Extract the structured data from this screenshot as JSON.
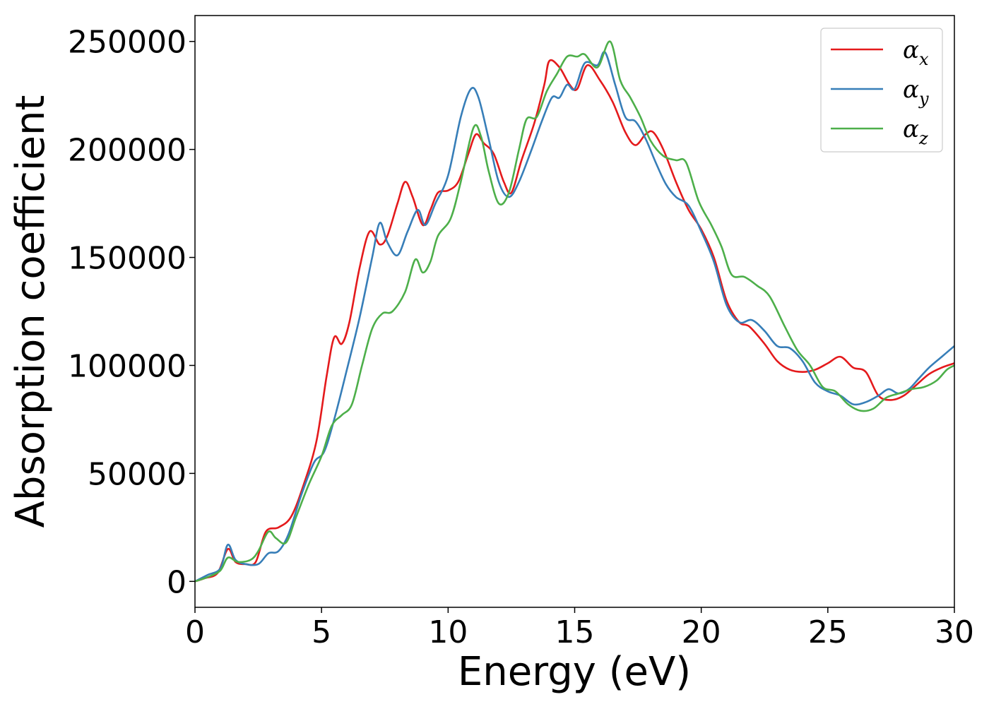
{
  "chart_data": {
    "type": "line",
    "title": "",
    "xlabel": "Energy (eV)",
    "ylabel": "Absorption coefficient",
    "xlim": [
      0,
      30
    ],
    "ylim": [
      -12000,
      262000
    ],
    "xticks": [
      0,
      5,
      10,
      15,
      20,
      25,
      30
    ],
    "yticks": [
      0,
      50000,
      100000,
      150000,
      200000,
      250000
    ],
    "grid": false,
    "legend_position": "top-right",
    "series": [
      {
        "name": "α_x",
        "label_base": "α",
        "label_sub": "x",
        "color": "#e41a1c",
        "points": [
          [
            0,
            0
          ],
          [
            0.4,
            1500
          ],
          [
            0.9,
            4000
          ],
          [
            1.3,
            15000
          ],
          [
            1.6,
            9000
          ],
          [
            2.0,
            8000
          ],
          [
            2.4,
            9000
          ],
          [
            2.8,
            23000
          ],
          [
            3.3,
            25000
          ],
          [
            3.8,
            30000
          ],
          [
            4.3,
            45000
          ],
          [
            4.8,
            65000
          ],
          [
            5.2,
            95000
          ],
          [
            5.5,
            113000
          ],
          [
            5.8,
            110000
          ],
          [
            6.1,
            120000
          ],
          [
            6.5,
            145000
          ],
          [
            6.9,
            162000
          ],
          [
            7.3,
            156000
          ],
          [
            7.6,
            160000
          ],
          [
            8.0,
            175000
          ],
          [
            8.3,
            185000
          ],
          [
            8.6,
            178000
          ],
          [
            9.0,
            165000
          ],
          [
            9.3,
            172000
          ],
          [
            9.6,
            180000
          ],
          [
            10.0,
            181000
          ],
          [
            10.4,
            185000
          ],
          [
            10.8,
            198000
          ],
          [
            11.1,
            207000
          ],
          [
            11.4,
            203000
          ],
          [
            11.8,
            198000
          ],
          [
            12.2,
            185000
          ],
          [
            12.5,
            180000
          ],
          [
            12.9,
            195000
          ],
          [
            13.4,
            212000
          ],
          [
            13.8,
            230000
          ],
          [
            14.0,
            241000
          ],
          [
            14.4,
            238000
          ],
          [
            14.8,
            230000
          ],
          [
            15.1,
            228000
          ],
          [
            15.5,
            239000
          ],
          [
            16.0,
            232000
          ],
          [
            16.5,
            222000
          ],
          [
            17.0,
            208000
          ],
          [
            17.4,
            202000
          ],
          [
            17.8,
            207000
          ],
          [
            18.1,
            208000
          ],
          [
            18.5,
            200000
          ],
          [
            19.0,
            185000
          ],
          [
            19.5,
            172000
          ],
          [
            20.0,
            163000
          ],
          [
            20.5,
            150000
          ],
          [
            21.0,
            130000
          ],
          [
            21.5,
            120000
          ],
          [
            21.9,
            118000
          ],
          [
            22.5,
            110000
          ],
          [
            23.0,
            102000
          ],
          [
            23.5,
            98000
          ],
          [
            24.0,
            97000
          ],
          [
            24.5,
            98000
          ],
          [
            25.0,
            101000
          ],
          [
            25.5,
            104000
          ],
          [
            26.0,
            99000
          ],
          [
            26.5,
            97000
          ],
          [
            27.0,
            86000
          ],
          [
            27.5,
            84000
          ],
          [
            28.0,
            86000
          ],
          [
            28.5,
            91000
          ],
          [
            29.0,
            96000
          ],
          [
            29.5,
            99000
          ],
          [
            30.0,
            101000
          ]
        ]
      },
      {
        "name": "α_y",
        "label_base": "α",
        "label_sub": "y",
        "color": "#377eb8",
        "points": [
          [
            0,
            0
          ],
          [
            0.5,
            3000
          ],
          [
            1.0,
            6000
          ],
          [
            1.3,
            17000
          ],
          [
            1.6,
            10000
          ],
          [
            2.0,
            8000
          ],
          [
            2.5,
            8000
          ],
          [
            2.9,
            13000
          ],
          [
            3.3,
            14000
          ],
          [
            3.7,
            22000
          ],
          [
            4.2,
            40000
          ],
          [
            4.7,
            55000
          ],
          [
            5.1,
            60000
          ],
          [
            5.5,
            75000
          ],
          [
            6.0,
            98000
          ],
          [
            6.5,
            122000
          ],
          [
            7.0,
            150000
          ],
          [
            7.3,
            166000
          ],
          [
            7.6,
            157000
          ],
          [
            8.0,
            151000
          ],
          [
            8.4,
            162000
          ],
          [
            8.8,
            172000
          ],
          [
            9.1,
            165000
          ],
          [
            9.5,
            175000
          ],
          [
            10.0,
            188000
          ],
          [
            10.5,
            215000
          ],
          [
            10.9,
            228000
          ],
          [
            11.2,
            224000
          ],
          [
            11.6,
            205000
          ],
          [
            12.0,
            185000
          ],
          [
            12.4,
            178000
          ],
          [
            12.8,
            185000
          ],
          [
            13.3,
            200000
          ],
          [
            13.7,
            213000
          ],
          [
            14.1,
            224000
          ],
          [
            14.4,
            224000
          ],
          [
            14.7,
            230000
          ],
          [
            15.0,
            228000
          ],
          [
            15.4,
            240000
          ],
          [
            15.9,
            239000
          ],
          [
            16.2,
            245000
          ],
          [
            16.6,
            230000
          ],
          [
            17.0,
            215000
          ],
          [
            17.4,
            213000
          ],
          [
            17.8,
            205000
          ],
          [
            18.2,
            194000
          ],
          [
            18.6,
            184000
          ],
          [
            19.0,
            178000
          ],
          [
            19.5,
            174000
          ],
          [
            20.0,
            162000
          ],
          [
            20.5,
            148000
          ],
          [
            21.0,
            128000
          ],
          [
            21.5,
            120000
          ],
          [
            22.0,
            121000
          ],
          [
            22.5,
            116000
          ],
          [
            23.0,
            109000
          ],
          [
            23.5,
            108000
          ],
          [
            24.0,
            102000
          ],
          [
            24.5,
            92000
          ],
          [
            25.0,
            88000
          ],
          [
            25.5,
            86000
          ],
          [
            26.0,
            82000
          ],
          [
            26.5,
            83000
          ],
          [
            27.0,
            86000
          ],
          [
            27.4,
            89000
          ],
          [
            27.8,
            87000
          ],
          [
            28.2,
            89000
          ],
          [
            28.6,
            94000
          ],
          [
            29.0,
            99000
          ],
          [
            29.5,
            104000
          ],
          [
            30.0,
            109000
          ]
        ]
      },
      {
        "name": "α_z",
        "label_base": "α",
        "label_sub": "z",
        "color": "#4daf4a",
        "points": [
          [
            0,
            0
          ],
          [
            0.5,
            2000
          ],
          [
            1.0,
            5000
          ],
          [
            1.3,
            11000
          ],
          [
            1.7,
            9000
          ],
          [
            2.2,
            10000
          ],
          [
            2.5,
            14000
          ],
          [
            2.9,
            23000
          ],
          [
            3.2,
            20000
          ],
          [
            3.6,
            18000
          ],
          [
            4.0,
            30000
          ],
          [
            4.5,
            45000
          ],
          [
            5.0,
            58000
          ],
          [
            5.4,
            72000
          ],
          [
            5.8,
            77000
          ],
          [
            6.2,
            82000
          ],
          [
            6.6,
            100000
          ],
          [
            7.0,
            117000
          ],
          [
            7.4,
            124000
          ],
          [
            7.8,
            125000
          ],
          [
            8.3,
            134000
          ],
          [
            8.7,
            149000
          ],
          [
            9.0,
            143000
          ],
          [
            9.3,
            148000
          ],
          [
            9.6,
            160000
          ],
          [
            10.1,
            168000
          ],
          [
            10.5,
            185000
          ],
          [
            11.0,
            210000
          ],
          [
            11.3,
            206000
          ],
          [
            11.6,
            190000
          ],
          [
            12.0,
            175000
          ],
          [
            12.4,
            180000
          ],
          [
            12.8,
            200000
          ],
          [
            13.1,
            214000
          ],
          [
            13.5,
            215000
          ],
          [
            13.9,
            227000
          ],
          [
            14.3,
            235000
          ],
          [
            14.7,
            243000
          ],
          [
            15.1,
            243000
          ],
          [
            15.4,
            244000
          ],
          [
            15.9,
            238000
          ],
          [
            16.4,
            250000
          ],
          [
            16.8,
            232000
          ],
          [
            17.2,
            224000
          ],
          [
            17.6,
            215000
          ],
          [
            18.0,
            204000
          ],
          [
            18.5,
            197000
          ],
          [
            19.0,
            195000
          ],
          [
            19.4,
            194000
          ],
          [
            19.9,
            176000
          ],
          [
            20.4,
            165000
          ],
          [
            20.8,
            155000
          ],
          [
            21.2,
            142000
          ],
          [
            21.7,
            141000
          ],
          [
            22.2,
            137000
          ],
          [
            22.7,
            132000
          ],
          [
            23.3,
            118000
          ],
          [
            23.8,
            107000
          ],
          [
            24.3,
            100000
          ],
          [
            24.8,
            90000
          ],
          [
            25.3,
            88000
          ],
          [
            25.8,
            82000
          ],
          [
            26.3,
            79000
          ],
          [
            26.8,
            80000
          ],
          [
            27.3,
            85000
          ],
          [
            27.8,
            87000
          ],
          [
            28.3,
            89000
          ],
          [
            28.8,
            90000
          ],
          [
            29.3,
            93000
          ],
          [
            29.7,
            98000
          ],
          [
            30.0,
            100000
          ]
        ]
      }
    ]
  }
}
